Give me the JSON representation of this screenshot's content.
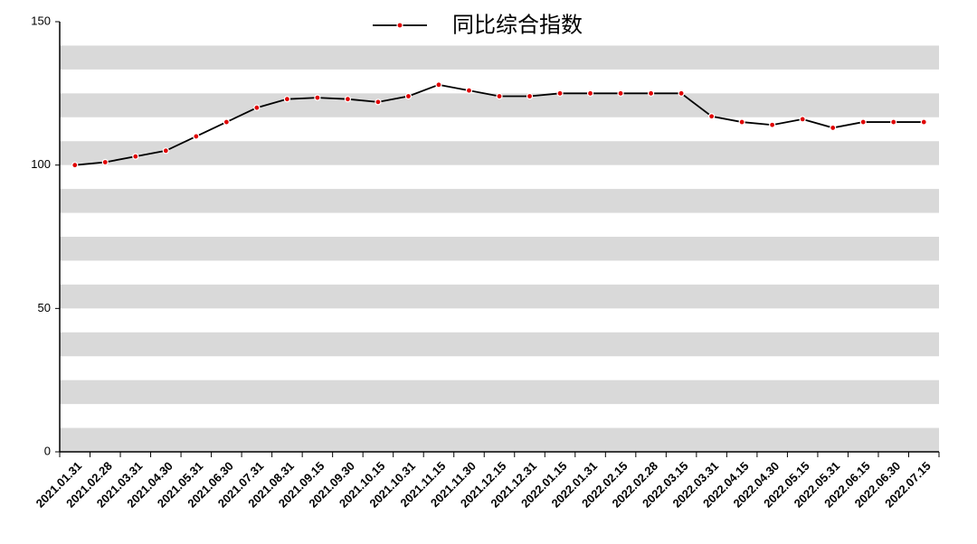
{
  "chart_data": {
    "type": "line",
    "categories": [
      "2021.01.31",
      "2021.02.28",
      "2021.03.31",
      "2021.04.30",
      "2021.05.31",
      "2021.06.30",
      "2021.07.31",
      "2021.08.31",
      "2021.09.15",
      "2021.09.30",
      "2021.10.15",
      "2021.10.31",
      "2021.11.15",
      "2021.11.30",
      "2021.12.15",
      "2021.12.31",
      "2022.01.15",
      "2022.01.31",
      "2022.02.15",
      "2022.02.28",
      "2022.03.15",
      "2022.03.31",
      "2022.04.15",
      "2022.04.30",
      "2022.05.15",
      "2022.05.31",
      "2022.06.15",
      "2022.06.30",
      "2022.07.15"
    ],
    "series": [
      {
        "name": "同比综合指数",
        "color": "#000000",
        "marker_color": "#e00000",
        "values": [
          100,
          101,
          103,
          105,
          110,
          115,
          120,
          123,
          123.5,
          123,
          122,
          124,
          128,
          126,
          124,
          124,
          125,
          125,
          125,
          125,
          125,
          117,
          115,
          114,
          116,
          113,
          115,
          115,
          115
        ]
      }
    ],
    "ylim": [
      0,
      150
    ],
    "yticks": [
      0,
      50,
      100,
      150
    ],
    "legend": "top"
  }
}
